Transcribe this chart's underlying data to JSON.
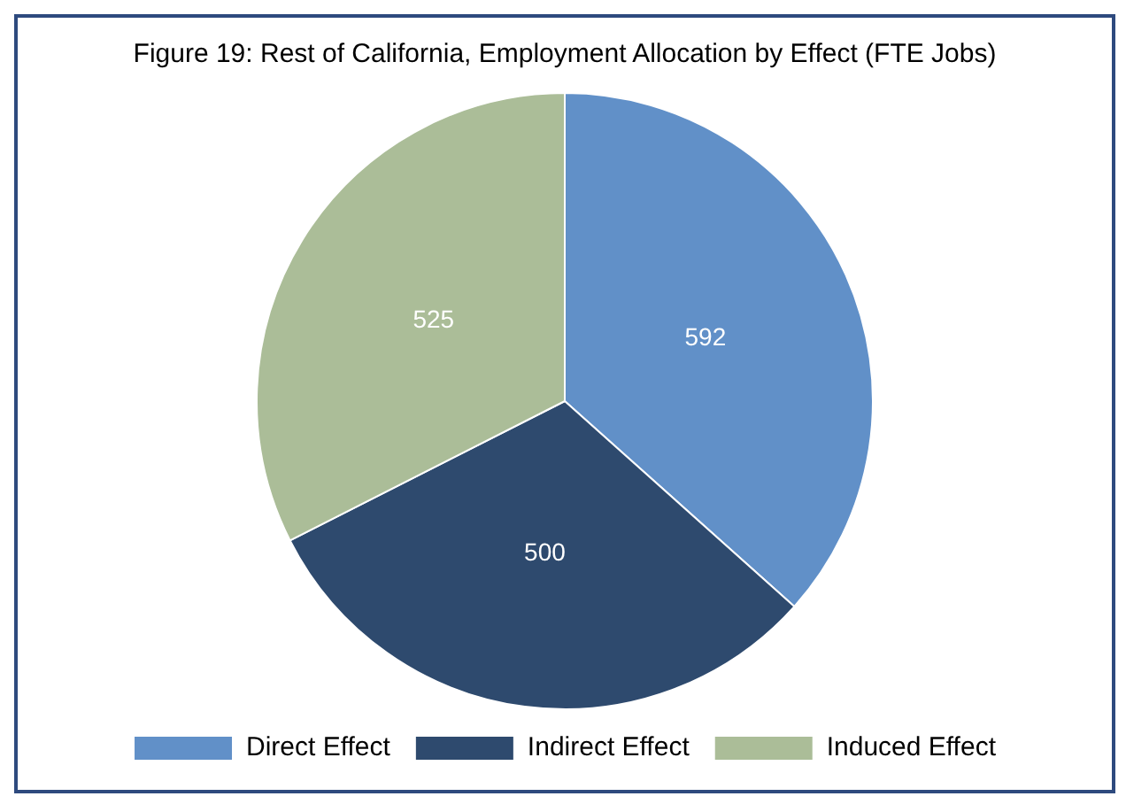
{
  "chart_data": {
    "type": "pie",
    "title": "Figure 19: Rest of California, Employment Allocation by Effect (FTE Jobs)",
    "categories": [
      "Direct Effect",
      "Indirect Effect",
      "Induced Effect"
    ],
    "values": [
      592,
      500,
      525
    ],
    "colors": [
      "#6190c8",
      "#2e4a6e",
      "#abbd98"
    ],
    "data_labels": true,
    "legend": "bottom"
  }
}
